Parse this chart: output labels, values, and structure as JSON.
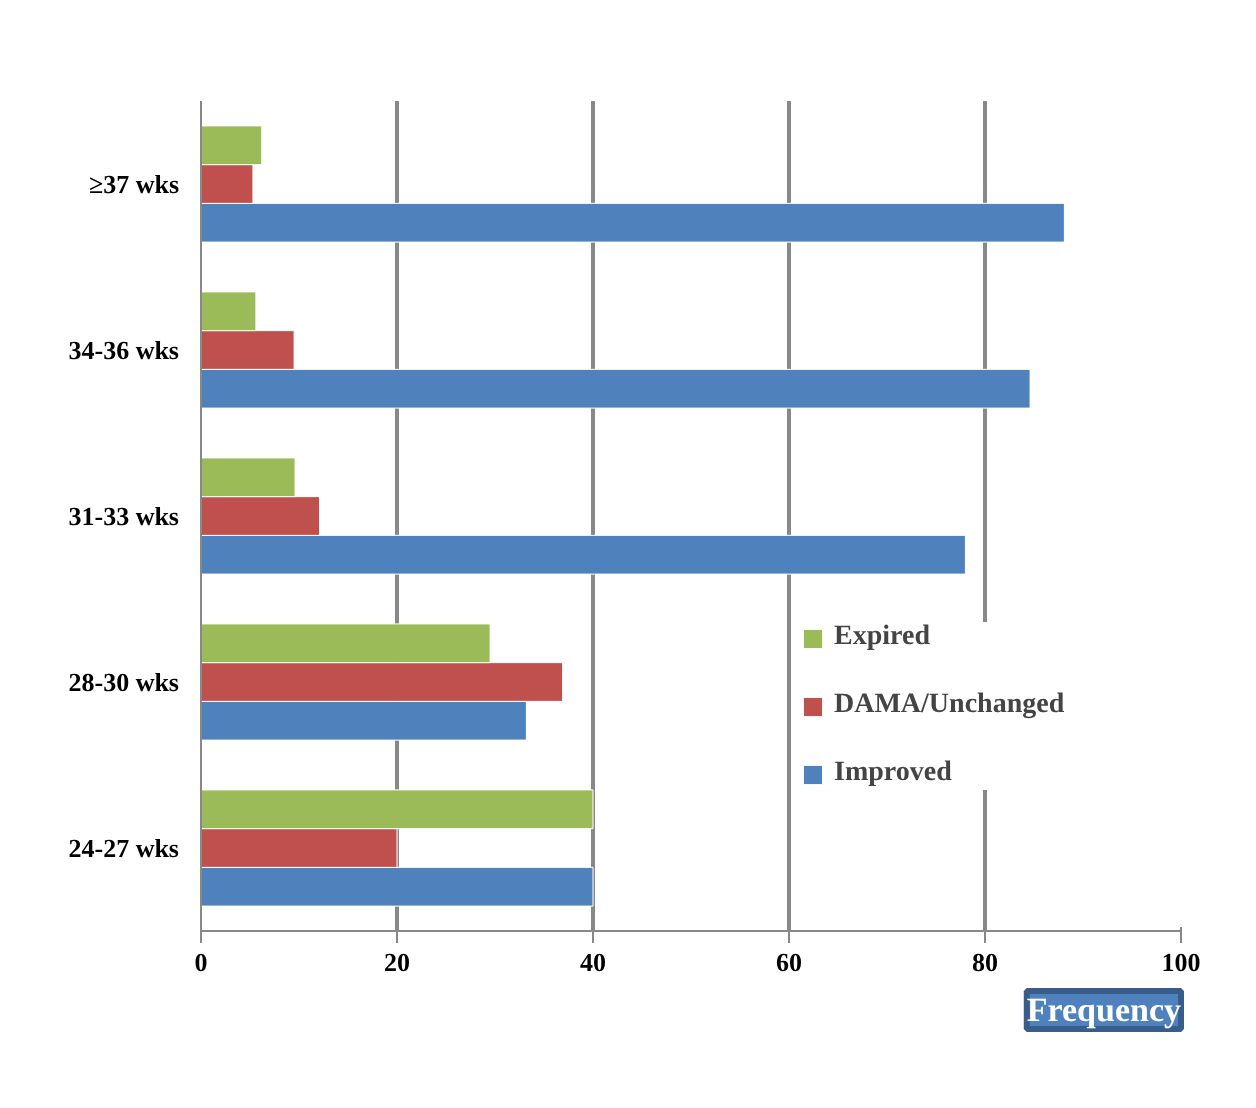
{
  "chart_data": {
    "type": "bar",
    "orientation": "horizontal",
    "xlabel": "Frequency",
    "categories": [
      "≥37 wks",
      "34-36 wks",
      "31-33 wks",
      "28-30 wks",
      "24-27 wks"
    ],
    "series": [
      {
        "name": "Improved",
        "color": "#4f81bd",
        "values": [
          88.1,
          84.6,
          78.0,
          33.2,
          40
        ]
      },
      {
        "name": "DAMA/Unchanged",
        "color": "#c0504d",
        "values": [
          5.3,
          9.5,
          12.1,
          36.9,
          20
        ]
      },
      {
        "name": "Expired",
        "color": "#9bbb59",
        "values": [
          6.2,
          5.6,
          9.6,
          29.5,
          40
        ]
      }
    ],
    "xlim": [
      0,
      100
    ],
    "xticks": [
      0,
      20,
      40,
      60,
      80,
      100
    ],
    "grid": "x",
    "legend": "right"
  }
}
